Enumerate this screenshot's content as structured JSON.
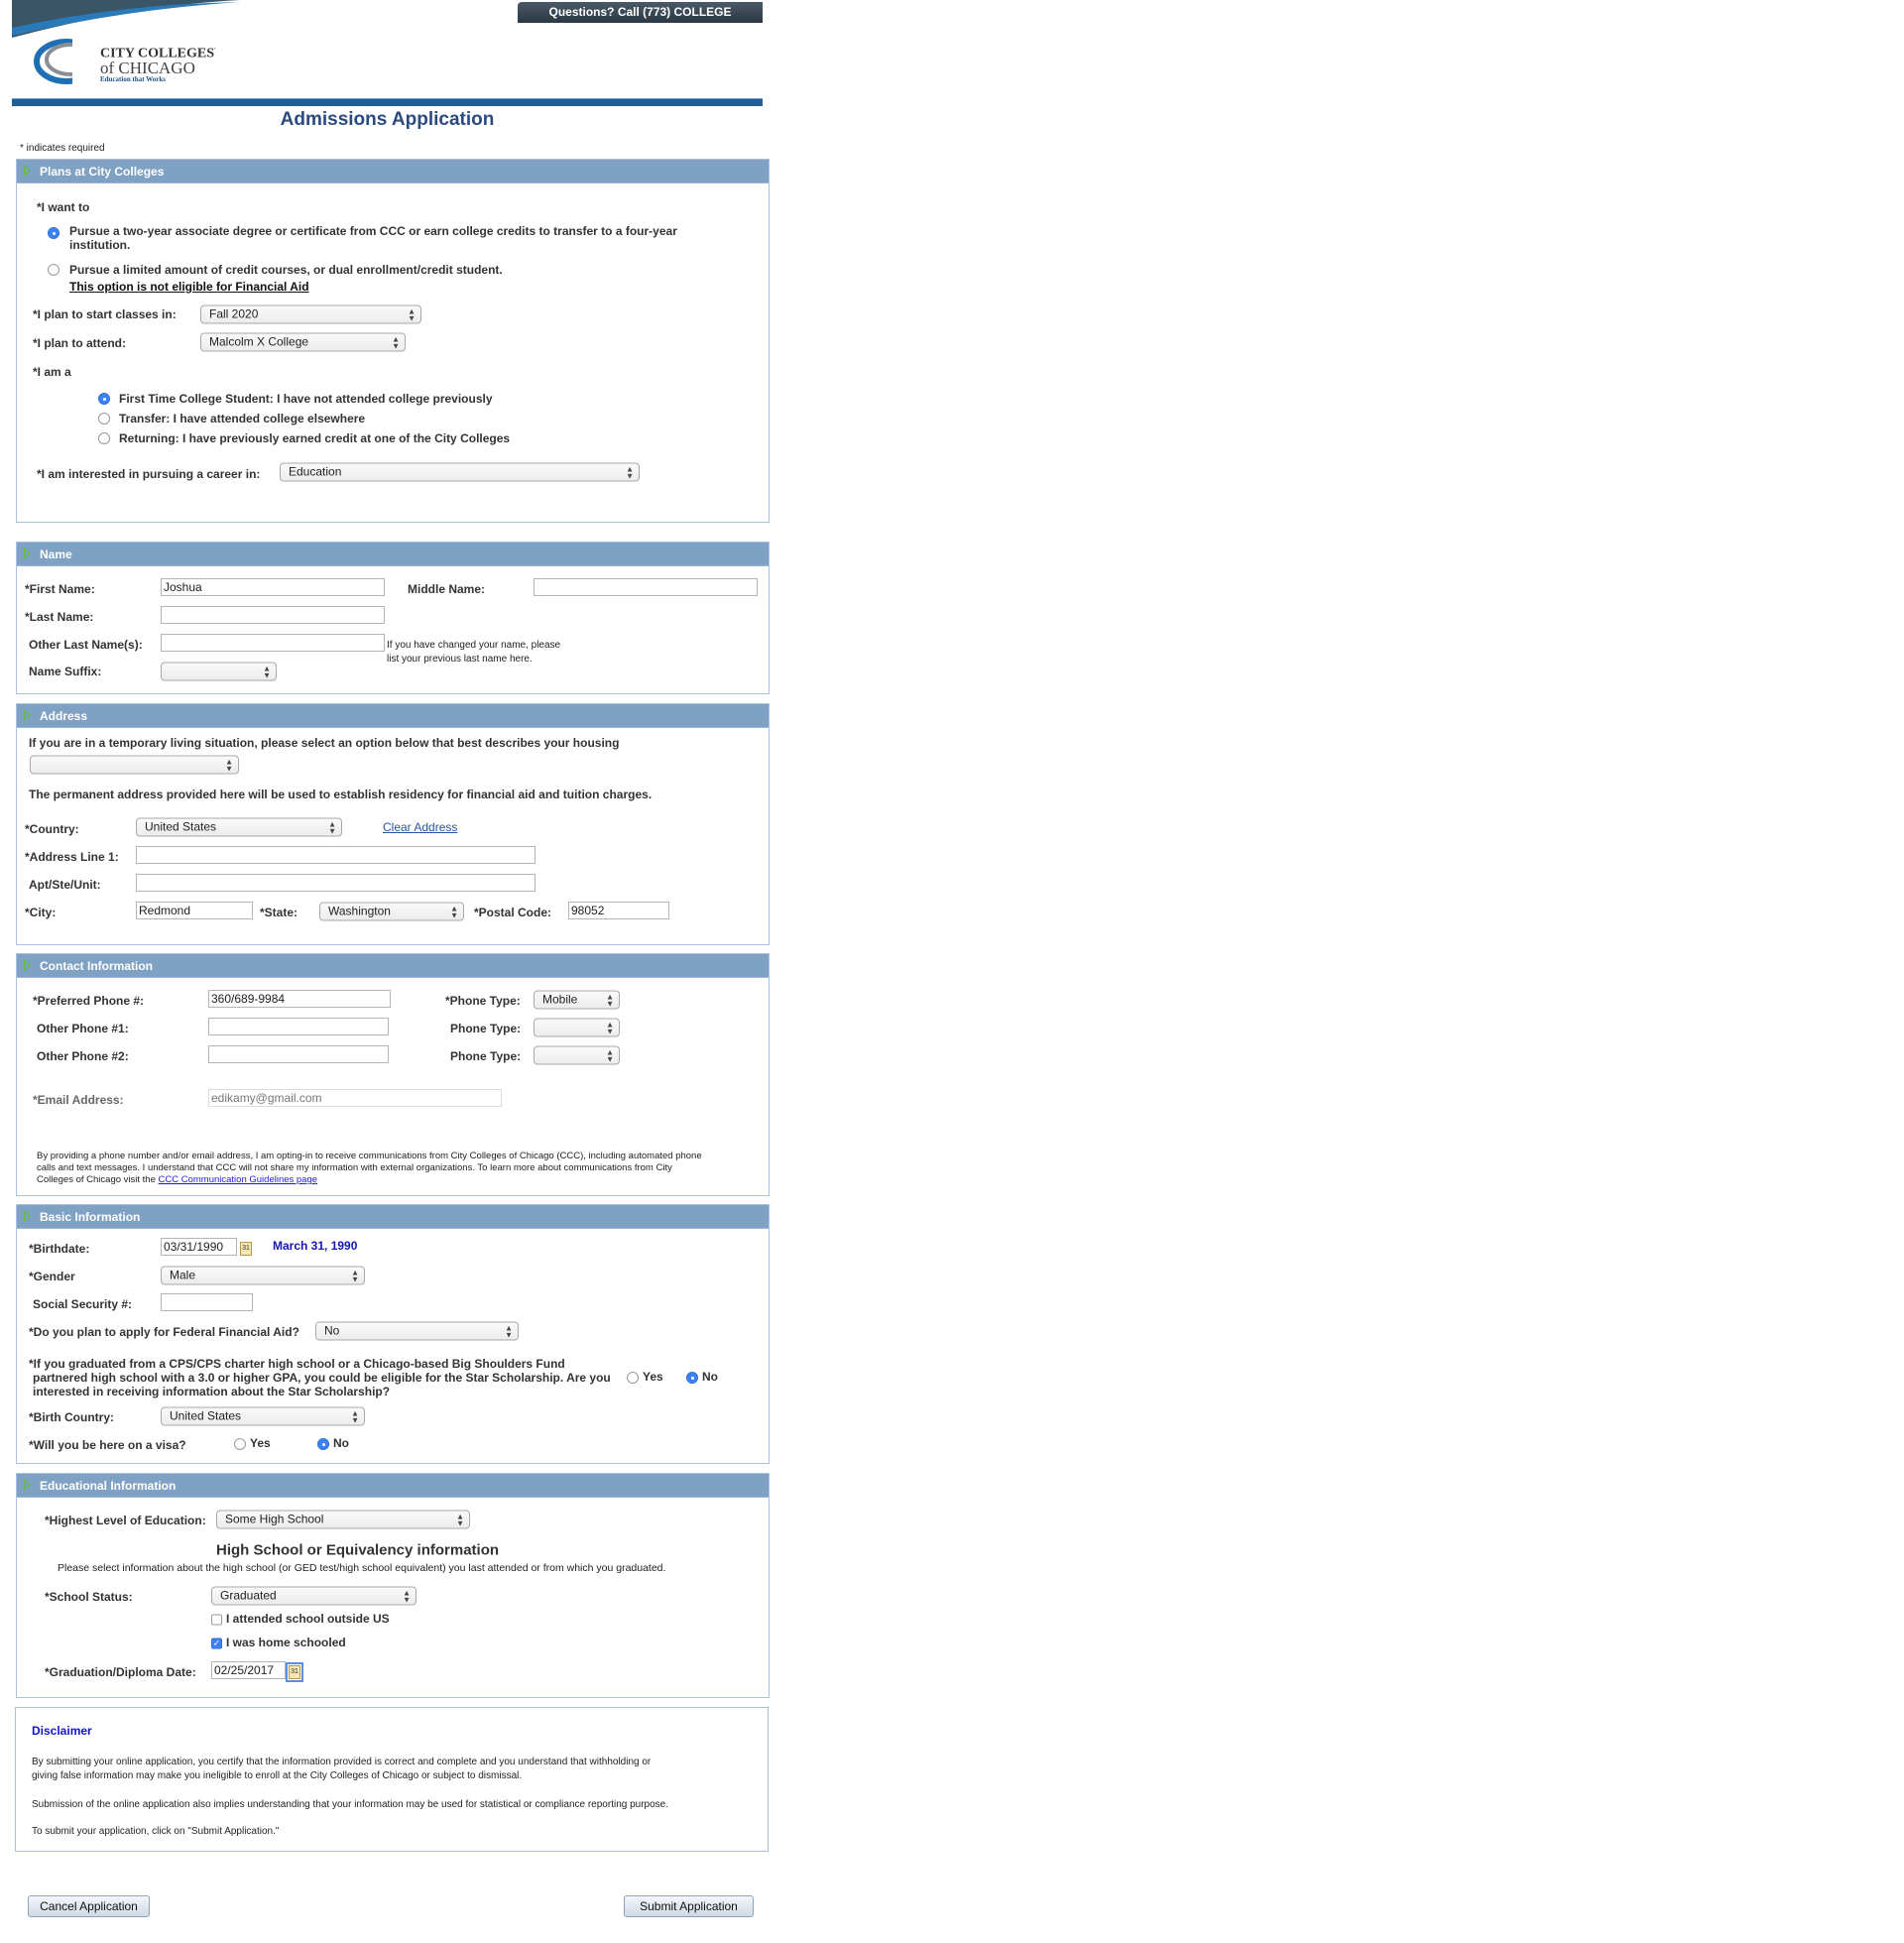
{
  "header": {
    "logo_text": "CITY COLLEGES of CHICAGO",
    "logo_tagline": "Education that Works",
    "questions_banner": "Questions? Call (773) COLLEGE",
    "page_title": "Admissions Application",
    "required_note": "* indicates required",
    "brand_color": "#1f5f99"
  },
  "plans": {
    "title": "Plans at City Colleges",
    "i_want_to_label": "*I want to",
    "options": [
      {
        "label_line1": "Pursue a two-year associate degree or certificate from CCC or earn college credits to transfer to a four-year",
        "label_line2": "institution.",
        "selected": true
      },
      {
        "label_line1": "Pursue a limited amount of credit courses, or dual enrollment/credit student.",
        "label_line2": "This option is not eligible for Financial Aid",
        "selected": false
      }
    ],
    "start_label": "*I plan to start classes in:",
    "start_value": "Fall 2020",
    "attend_label": "*I plan to attend:",
    "attend_value": "Malcolm X College",
    "i_am_a_label": "*I am a",
    "student_types": [
      {
        "label": "First Time College Student: I have not attended college previously",
        "selected": true
      },
      {
        "label": "Transfer: I have attended college elsewhere",
        "selected": false
      },
      {
        "label": "Returning: I have previously earned credit at one of the City Colleges",
        "selected": false
      }
    ],
    "career_label": "*I am interested in pursuing a career in:",
    "career_value": "Education"
  },
  "name": {
    "title": "Name",
    "first_label": "*First Name:",
    "first_value": "Joshua",
    "middle_label": "Middle Name:",
    "middle_value": "",
    "last_label": "*Last Name:",
    "last_value": "",
    "other_label": "Other Last Name(s):",
    "other_value": "",
    "other_hint_line1": "If you have changed your name, please",
    "other_hint_line2": "list your previous last name here.",
    "suffix_label": "Name Suffix:",
    "suffix_value": ""
  },
  "address": {
    "title": "Address",
    "housing_text": "If you are in a temporary living situation, please select an option below that best describes your housing",
    "housing_value": "",
    "permanent_text": "The permanent address provided here will be used to establish residency for financial aid and tuition charges.",
    "country_label": "*Country:",
    "country_value": "United States",
    "clear_address": "Clear Address",
    "line1_label": "*Address Line 1:",
    "line1_value": "",
    "apt_label": "Apt/Ste/Unit:",
    "apt_value": "",
    "city_label": "*City:",
    "city_value": "Redmond",
    "state_label": "*State:",
    "state_value": "Washington",
    "postal_label": "*Postal Code:",
    "postal_value": "98052"
  },
  "contact": {
    "title": "Contact Information",
    "phones": [
      {
        "label": "*Preferred Phone #:",
        "value": "360/689-9984",
        "type_label": "*Phone Type:",
        "type_value": "Mobile"
      },
      {
        "label": "Other Phone #1:",
        "value": "",
        "type_label": "Phone Type:",
        "type_value": ""
      },
      {
        "label": "Other Phone #2:",
        "value": "",
        "type_label": "Phone Type:",
        "type_value": ""
      }
    ],
    "email_label": "*Email Address:",
    "email_value": "edikamy@gmail.com",
    "optin_line1": "By providing a phone number and/or email address, I am opting-in to receive communications from City Colleges of Chicago (CCC), including automated phone",
    "optin_line2": "calls and text messages. I understand that CCC will not share my information with external organizations. To learn more about communications from City",
    "optin_line3": "Colleges of Chicago visit the",
    "optin_link": "CCC Communication Guidelines page"
  },
  "basic": {
    "title": "Basic Information",
    "birthdate_label": "*Birthdate:",
    "birthdate_value": "03/31/1990",
    "birthdate_long": "March 31, 1990",
    "gender_label": "*Gender",
    "gender_value": "Male",
    "ssn_label": "Social Security #:",
    "ssn_value": "",
    "ffa_label": "*Do you plan to apply for Federal Financial Aid?",
    "ffa_value": "No",
    "star_line1": "*If you graduated from a CPS/CPS charter high school or a Chicago-based Big Shoulders Fund",
    "star_line2": "partnered high school with a 3.0 or higher GPA, you could be eligible for the Star Scholarship. Are you",
    "star_line3": "interested in receiving information about the Star Scholarship?",
    "star_yes": "Yes",
    "star_no": "No",
    "star_selected": "No",
    "birth_country_label": "*Birth Country:",
    "birth_country_value": "United States",
    "visa_label": "*Will you be here on a visa?",
    "visa_yes": "Yes",
    "visa_no": "No",
    "visa_selected": "No"
  },
  "education": {
    "title": "Educational Information",
    "highest_label": "*Highest Level of Education:",
    "highest_value": "Some High School",
    "hs_heading": "High School or Equivalency information",
    "hs_note": "Please select information about the high school (or GED test/high school equivalent) you last attended or from which you graduated.",
    "status_label": "*School Status:",
    "status_value": "Graduated",
    "outside_us_label": "I attended school outside US",
    "outside_us_checked": false,
    "home_schooled_label": "I was home schooled",
    "home_schooled_checked": true,
    "grad_date_label": "*Graduation/Diploma Date:",
    "grad_date_value": "02/25/2017"
  },
  "disclaimer": {
    "title": "Disclaimer",
    "p1_line1": "By submitting your online application, you certify that the information provided is correct and complete and you understand that withholding or",
    "p1_line2": "giving false information may make you ineligible to enroll at the City Colleges of Chicago or subject to dismissal.",
    "p2": "Submission of the online application also implies understanding that your information may be used for statistical or compliance reporting purpose.",
    "p3": "To submit your application, click on \"Submit Application.\""
  },
  "actions": {
    "cancel": "Cancel Application",
    "submit": "Submit Application"
  }
}
